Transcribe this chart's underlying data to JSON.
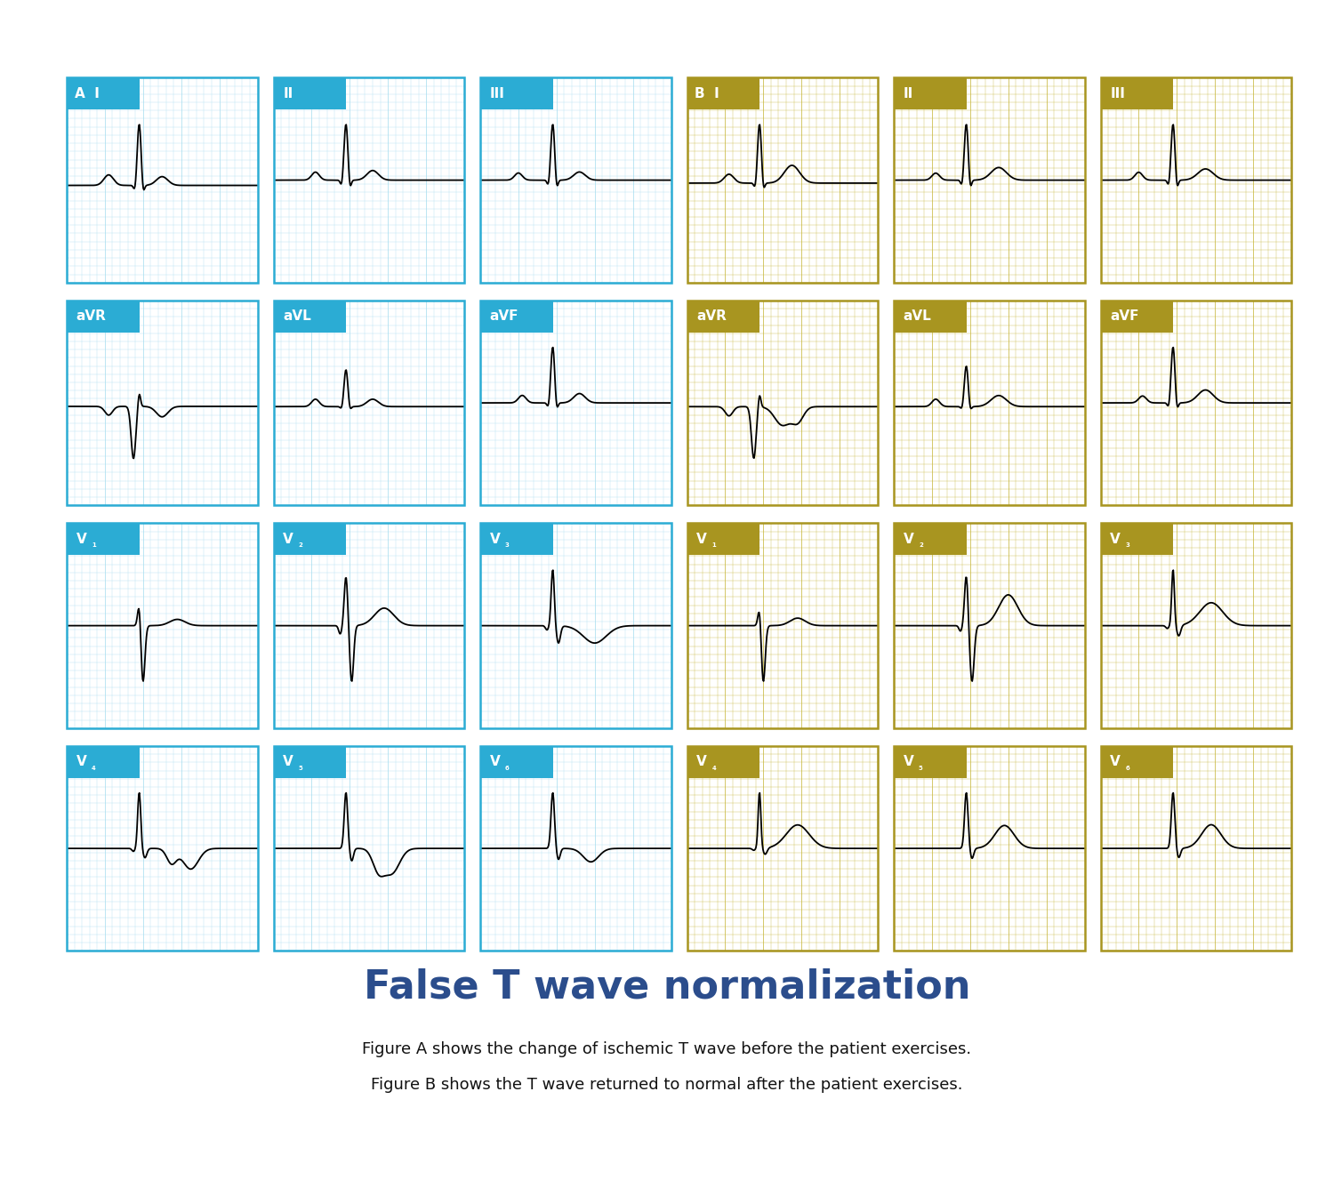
{
  "title": "False T wave normalization",
  "subtitle_line1": "Figure A shows the change of ischemic T wave before the patient exercises.",
  "subtitle_line2": "Figure B shows the T wave returned to normal after the patient exercises.",
  "blue_color": "#2BACD4",
  "gold_color": "#A89520",
  "blue_grid": "#AADFF0",
  "gold_grid": "#C8B840",
  "title_color": "#2B4D8C",
  "footer_bg": "#2E3338"
}
